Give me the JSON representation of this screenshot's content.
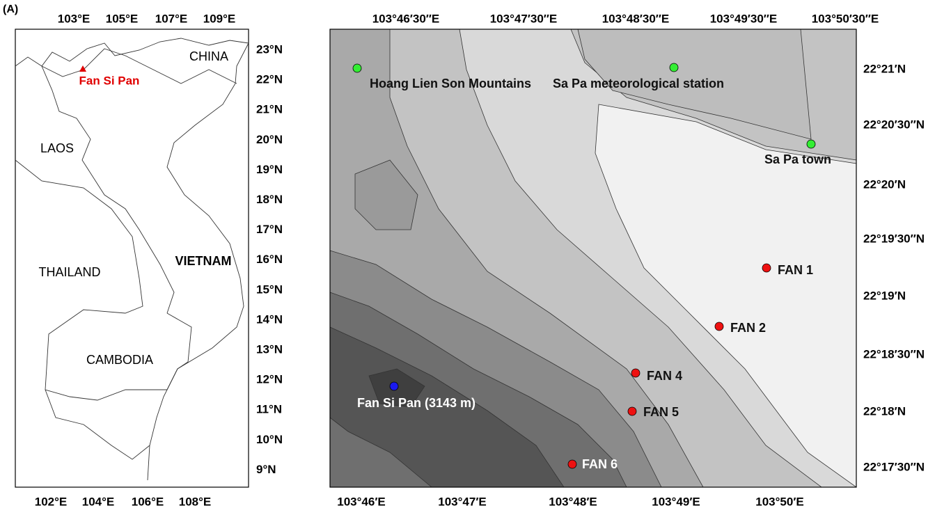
{
  "panel_label": "(A)",
  "overview_map": {
    "longitude_top": [
      "103°E",
      "105°E",
      "107°E",
      "109°E"
    ],
    "longitude_bottom": [
      "102°E",
      "104°E",
      "106°E",
      "108°E"
    ],
    "latitude": [
      "23°N",
      "22°N",
      "21°N",
      "20°N",
      "19°N",
      "18°N",
      "17°N",
      "16°N",
      "15°N",
      "14°N",
      "13°N",
      "12°N",
      "11°N",
      "10°N",
      "9°N"
    ],
    "countries": [
      "CHINA",
      "LAOS",
      "THAILAND",
      "VIETNAM",
      "CAMBODIA"
    ],
    "peak_label": "Fan Si Pan"
  },
  "detail_map": {
    "longitude_top": [
      "103°46′30″E",
      "103°47′30″E",
      "103°48′30″E",
      "103°49′30″E",
      "103°50′30″E"
    ],
    "longitude_bottom": [
      "103°46′E",
      "103°47′E",
      "103°48′E",
      "103°49′E",
      "103°50′E"
    ],
    "latitude": [
      "22°21′N",
      "22°20′30″N",
      "22°20′N",
      "22°19′30″N",
      "22°19′N",
      "22°18′30″N",
      "22°18′N",
      "22°17′30″N"
    ],
    "places": [
      {
        "label": "Hoang Lien Son Mountains"
      },
      {
        "label": "Sa Pa meteorological station"
      },
      {
        "label": "Sa Pa town"
      },
      {
        "label": "Fan Si Pan (3143 m)"
      },
      {
        "label": "FAN 1"
      },
      {
        "label": "FAN 2"
      },
      {
        "label": "FAN 4"
      },
      {
        "label": "FAN 5"
      },
      {
        "label": "FAN 6"
      }
    ]
  }
}
